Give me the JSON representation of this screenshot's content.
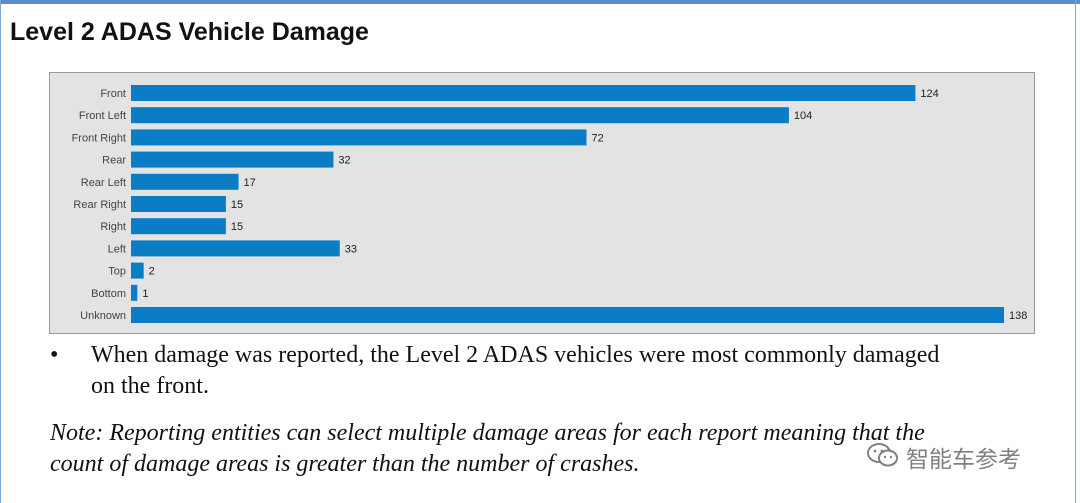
{
  "title": "Level 2 ADAS Vehicle Damage",
  "chart_data": {
    "type": "bar",
    "orientation": "horizontal",
    "title": "",
    "xlabel": "",
    "ylabel": "",
    "categories": [
      "Front",
      "Front Left",
      "Front Right",
      "Rear",
      "Rear Left",
      "Rear Right",
      "Right",
      "Left",
      "Top",
      "Bottom",
      "Unknown"
    ],
    "values": [
      124,
      104,
      72,
      32,
      17,
      15,
      15,
      33,
      2,
      1,
      138
    ],
    "xlim": [
      0,
      138
    ],
    "grid": false,
    "bar_color": "#0a7dc4",
    "background": "#e3e3e3"
  },
  "bullet": {
    "symbol": "•",
    "line1": "When damage was reported, the Level 2 ADAS vehicles were most commonly damaged",
    "line2": "on the front."
  },
  "note": {
    "line1": "Note: Reporting entities can select multiple damage areas for each report meaning that the",
    "line2": "count of damage areas is greater than the number of crashes."
  },
  "watermark": {
    "text": "智能车参考",
    "icon": "wechat-logo-icon"
  }
}
